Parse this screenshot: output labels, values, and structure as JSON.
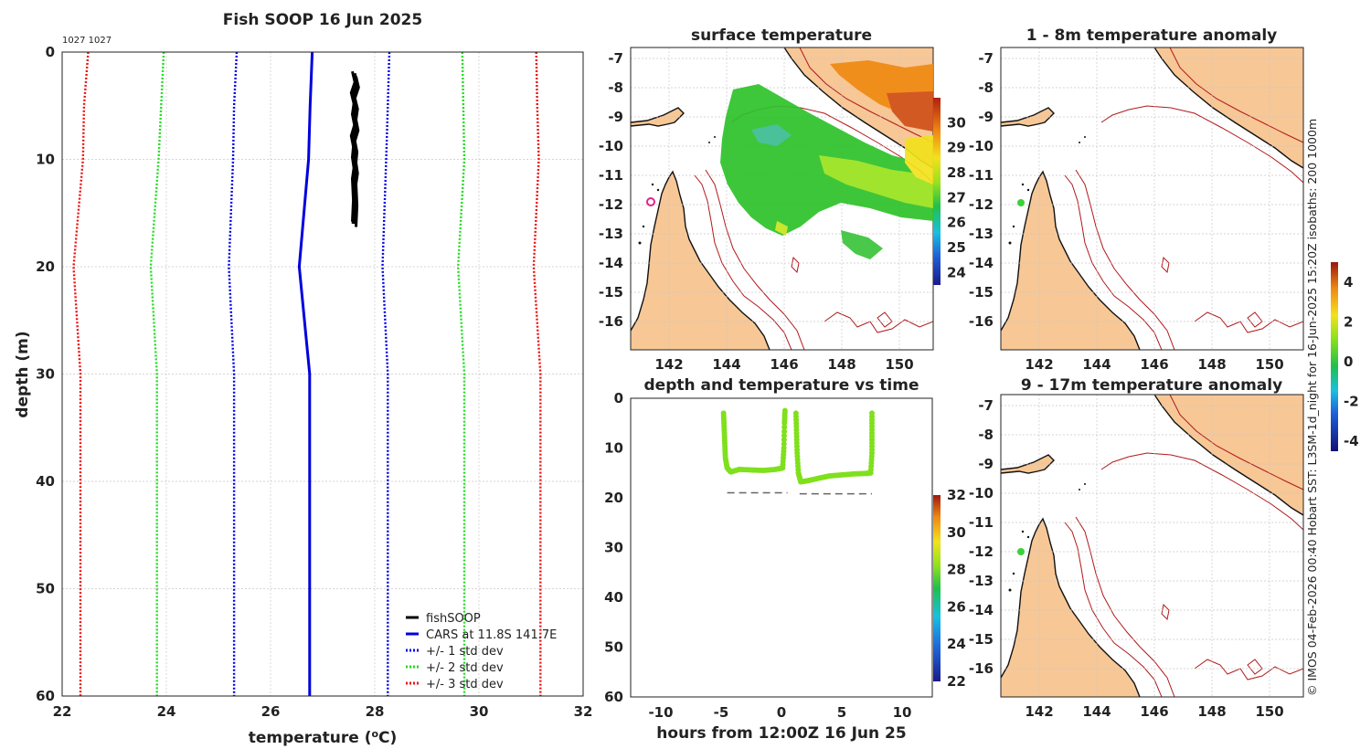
{
  "main": {
    "title": "Fish SOOP 16 Jun 2025",
    "id_label": "1027 1027",
    "xlabel": "temperature (",
    "xlabel_sup": "o",
    "xlabel_end": "C)",
    "ylabel": "depth (m)"
  },
  "chart_data": [
    {
      "type": "line",
      "title": "Fish SOOP 16 Jun 2025",
      "xlabel": "temperature (oC)",
      "ylabel": "depth (m)",
      "xlim": [
        22,
        32
      ],
      "ylim": [
        0,
        60
      ],
      "y_reversed": true,
      "xticks": [
        22,
        24,
        26,
        28,
        30,
        32
      ],
      "yticks": [
        0,
        10,
        20,
        30,
        40,
        50,
        60
      ],
      "series": [
        {
          "name": "fishSOOP",
          "color": "#000000",
          "style": "solid",
          "x": [
            27.6,
            27.65,
            27.58,
            27.63,
            27.6,
            27.64,
            27.58,
            27.62,
            27.6,
            27.63,
            27.6,
            27.62,
            27.6
          ],
          "y": [
            2,
            3,
            4,
            5,
            6,
            7,
            8,
            9,
            10,
            11,
            12,
            14,
            16
          ]
        },
        {
          "name": "CARS at 11.8S 141.7E",
          "color": "#0000dd",
          "style": "solid",
          "x": [
            26.8,
            26.76,
            26.73,
            26.55,
            26.75,
            26.75
          ],
          "y": [
            0,
            5,
            10,
            20,
            30,
            60
          ]
        },
        {
          "name": "+/- 1 std dev",
          "color": "#0000ee",
          "style": "dotted",
          "x_low": [
            25.35,
            25.3,
            25.28,
            25.2,
            25.3,
            25.3
          ],
          "x_high": [
            28.28,
            28.25,
            28.22,
            28.15,
            28.25,
            28.25
          ],
          "y": [
            0,
            5,
            10,
            20,
            30,
            60
          ]
        },
        {
          "name": "+/- 2 std dev",
          "color": "#22dd22",
          "style": "dotted",
          "x_low": [
            23.95,
            23.9,
            23.85,
            23.7,
            23.82,
            23.82
          ],
          "x_high": [
            29.68,
            29.7,
            29.72,
            29.6,
            29.72,
            29.72
          ],
          "y": [
            0,
            5,
            10,
            20,
            30,
            60
          ]
        },
        {
          "name": "+/- 3 std dev",
          "color": "#ee1111",
          "style": "dotted",
          "x_low": [
            22.5,
            22.42,
            22.4,
            22.22,
            22.35,
            22.35
          ],
          "x_high": [
            31.1,
            31.12,
            31.15,
            31.05,
            31.18,
            31.18
          ],
          "y": [
            0,
            5,
            10,
            20,
            30,
            60
          ]
        }
      ],
      "legend_position": "bottom-right"
    },
    {
      "type": "scatter",
      "title": "depth and temperature vs time",
      "xlabel": "hours from 12:00Z 16 Jun 25",
      "xlim": [
        -12.5,
        12.5
      ],
      "ylim": [
        0,
        60
      ],
      "y_reversed": true,
      "xticks": [
        -10,
        -5,
        0,
        5,
        10
      ],
      "yticks": [
        0,
        10,
        20,
        30,
        40,
        50,
        60
      ],
      "colorbar": {
        "min": 22,
        "max": 32,
        "ticks": [
          22,
          24,
          26,
          28,
          30,
          32
        ]
      },
      "points": [
        {
          "x": -4.8,
          "y": 3.0
        },
        {
          "x": -4.75,
          "y": 6.0
        },
        {
          "x": -4.7,
          "y": 9.0
        },
        {
          "x": -4.65,
          "y": 12.0
        },
        {
          "x": -4.5,
          "y": 14.0
        },
        {
          "x": -4.2,
          "y": 14.8
        },
        {
          "x": -3.5,
          "y": 14.3
        },
        {
          "x": -2.5,
          "y": 14.4
        },
        {
          "x": -1.5,
          "y": 14.5
        },
        {
          "x": -0.5,
          "y": 14.3
        },
        {
          "x": 0.1,
          "y": 14.0
        },
        {
          "x": 0.2,
          "y": 10.0
        },
        {
          "x": 0.25,
          "y": 5.0
        },
        {
          "x": 0.3,
          "y": 2.0
        },
        {
          "x": 1.2,
          "y": 3.0
        },
        {
          "x": 1.25,
          "y": 7.0
        },
        {
          "x": 1.3,
          "y": 11.0
        },
        {
          "x": 1.4,
          "y": 15.0
        },
        {
          "x": 1.6,
          "y": 16.8
        },
        {
          "x": 2.3,
          "y": 16.5
        },
        {
          "x": 3.2,
          "y": 16.0
        },
        {
          "x": 4.0,
          "y": 15.6
        },
        {
          "x": 5.0,
          "y": 15.4
        },
        {
          "x": 6.0,
          "y": 15.2
        },
        {
          "x": 7.0,
          "y": 15.1
        },
        {
          "x": 7.4,
          "y": 15.0
        },
        {
          "x": 7.5,
          "y": 11.0
        },
        {
          "x": 7.5,
          "y": 7.0
        },
        {
          "x": 7.5,
          "y": 3.0
        }
      ],
      "bottom_depth_segments": [
        {
          "x": [
            -4.5,
            0.5
          ],
          "y": 19
        },
        {
          "x": 1.5,
          "x_end": 7.5,
          "y": 19.2
        }
      ]
    },
    {
      "type": "heatmap",
      "title": "surface temperature",
      "xticks": [
        142,
        144,
        146,
        148,
        150
      ],
      "yticks": [
        -7,
        -8,
        -9,
        -10,
        -11,
        -12,
        -13,
        -14,
        -15,
        -16
      ],
      "colorbar": {
        "min": 23.5,
        "max": 31,
        "ticks": [
          24,
          25,
          26,
          27,
          28,
          29,
          30
        ]
      }
    },
    {
      "type": "heatmap",
      "title": "1 - 8m temperature anomaly",
      "xticks": [
        142,
        144,
        146,
        148,
        150
      ],
      "yticks": [
        -7,
        -8,
        -9,
        -10,
        -11,
        -12,
        -13,
        -14,
        -15,
        -16
      ],
      "colorbar": {
        "min": -4.5,
        "max": 5,
        "ticks": [
          -4,
          -2,
          0,
          2,
          4
        ]
      }
    },
    {
      "type": "heatmap",
      "title": "9 - 17m temperature anomaly",
      "xticks": [
        142,
        144,
        146,
        148,
        150
      ],
      "yticks": [
        -7,
        -8,
        -9,
        -10,
        -11,
        -12,
        -13,
        -14,
        -15,
        -16
      ]
    }
  ],
  "legend": [
    {
      "label": "fishSOOP",
      "color": "#000000",
      "style": "solid"
    },
    {
      "label": "CARS at 11.8S 141.7E",
      "color": "#0000dd",
      "style": "solid"
    },
    {
      "label": "+/- 1 std dev",
      "color": "#0000ee",
      "style": "dotted"
    },
    {
      "label": "+/- 2 std dev",
      "color": "#22dd22",
      "style": "dotted"
    },
    {
      "label": "+/- 3 std dev",
      "color": "#ee1111",
      "style": "dotted"
    }
  ],
  "panels": {
    "sst_title": "surface temperature",
    "depth_time_title": "depth and temperature vs time",
    "depth_time_xlabel": "hours from 12:00Z 16 Jun 25",
    "anom1_title": "1 - 8m temperature anomaly",
    "anom2_title": "9 - 17m temperature anomaly"
  },
  "credit": "© IMOS 04-Feb-2026 00:40 Hobart SST: L3SM-1d_night for 16-Jun-2025 15:20Z isobaths: 200  1000m",
  "colors": {
    "land": "#f7c796",
    "isobath": "#b0191b",
    "fish": "#000000",
    "cars": "#0000dd",
    "std1": "#0000ee",
    "std2": "#22dd22",
    "std3": "#ee1111",
    "track_marker": "#e0228a"
  }
}
